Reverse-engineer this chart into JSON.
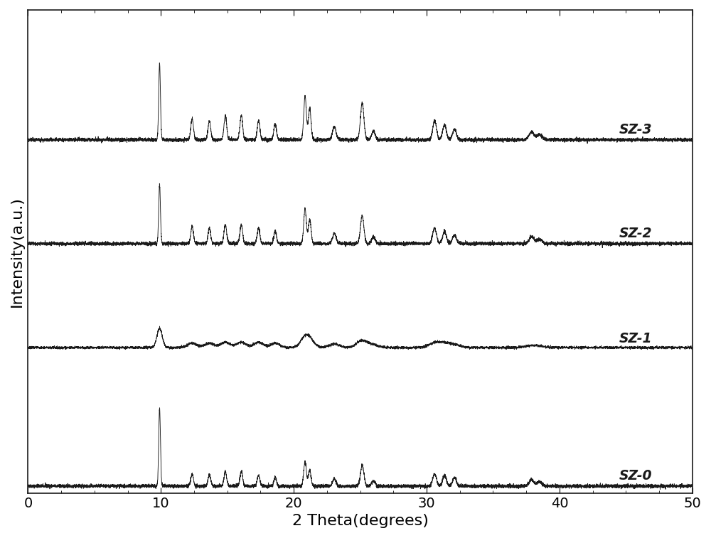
{
  "title": "",
  "xlabel": "2 Theta(degrees)",
  "ylabel": "Intensity(a.u.)",
  "xlim": [
    0,
    50
  ],
  "xticks": [
    0,
    10,
    20,
    30,
    40,
    50
  ],
  "background_color": "#ffffff",
  "line_color": "#1a1a1a",
  "label_fontsize": 16,
  "tick_fontsize": 14,
  "series_labels": [
    "SZ-0",
    "SZ-1",
    "SZ-2",
    "SZ-3"
  ],
  "offsets": [
    0.0,
    1.6,
    2.8,
    4.0
  ],
  "peak_positions": [
    9.9,
    12.35,
    13.65,
    14.85,
    16.05,
    17.35,
    18.6,
    20.85,
    21.2,
    23.05,
    25.15,
    26.0,
    30.6,
    31.35,
    32.1,
    37.9,
    38.5
  ],
  "peak_widths_sharp": [
    0.065,
    0.1,
    0.1,
    0.1,
    0.1,
    0.1,
    0.1,
    0.1,
    0.1,
    0.13,
    0.13,
    0.13,
    0.14,
    0.14,
    0.14,
    0.18,
    0.18
  ],
  "peak_widths_broad": [
    0.2,
    0.35,
    0.35,
    0.35,
    0.35,
    0.35,
    0.35,
    0.35,
    0.35,
    0.4,
    0.4,
    0.4,
    0.45,
    0.45,
    0.45,
    0.5,
    0.5
  ],
  "intensities_SZ0": [
    0.9,
    0.14,
    0.13,
    0.17,
    0.17,
    0.13,
    0.1,
    0.28,
    0.18,
    0.08,
    0.24,
    0.06,
    0.14,
    0.12,
    0.1,
    0.07,
    0.05
  ],
  "intensities_SZ1": [
    0.22,
    0.05,
    0.05,
    0.06,
    0.06,
    0.06,
    0.05,
    0.1,
    0.07,
    0.04,
    0.08,
    0.03,
    0.05,
    0.04,
    0.03,
    0.02,
    0.01
  ],
  "intensities_SZ2": [
    0.68,
    0.2,
    0.18,
    0.22,
    0.22,
    0.18,
    0.15,
    0.4,
    0.28,
    0.12,
    0.32,
    0.08,
    0.18,
    0.14,
    0.1,
    0.08,
    0.05
  ],
  "intensities_SZ3": [
    0.88,
    0.24,
    0.22,
    0.28,
    0.28,
    0.22,
    0.18,
    0.5,
    0.36,
    0.15,
    0.42,
    0.1,
    0.22,
    0.17,
    0.12,
    0.09,
    0.06
  ],
  "noise_amp": 0.01,
  "noise_amp_sz1": 0.007,
  "ylim": [
    -0.08,
    5.5
  ]
}
